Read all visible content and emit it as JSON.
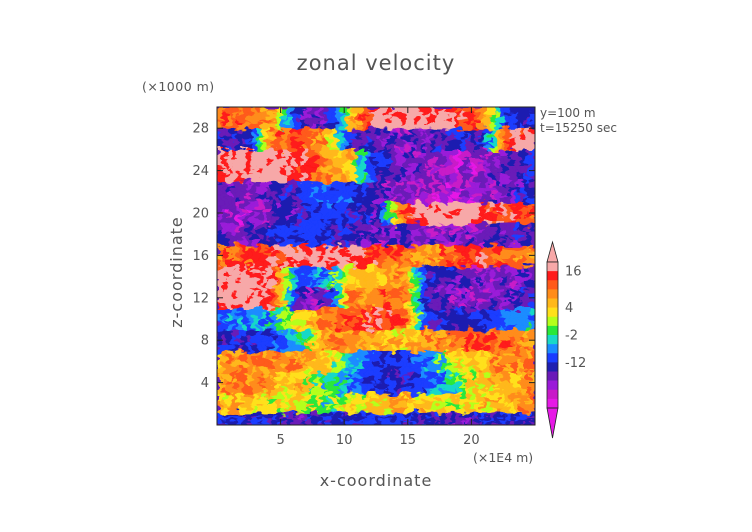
{
  "chart_data": {
    "type": "heatmap",
    "title": "zonal velocity",
    "xlabel": "x-coordinate",
    "ylabel": "z-coordinate",
    "x_unit": "(×1E4 m)",
    "y_unit": "(×1000 m)",
    "annotations": [
      "y=100 m",
      "t=15250 sec"
    ],
    "xlim": [
      0,
      25
    ],
    "ylim": [
      0,
      30
    ],
    "x_ticks": [
      5,
      10,
      15,
      20
    ],
    "y_ticks": [
      4,
      8,
      12,
      16,
      20,
      24,
      28
    ],
    "colorbar": {
      "tick_labels": [
        "16",
        "4",
        "-2",
        "-12"
      ],
      "tick_values": [
        16,
        4,
        -2,
        -12
      ],
      "colors": [
        "#f7a8a8",
        "#ff1a1a",
        "#ff5a1a",
        "#ff8c1a",
        "#ffb81a",
        "#ffe01a",
        "#b5ff1a",
        "#29e83a",
        "#19d8c8",
        "#1a8cff",
        "#1a3cff",
        "#1f1fb0",
        "#6a1ab8",
        "#9a1ad8",
        "#c81ac8",
        "#e619e6"
      ],
      "color_boundaries": [
        18,
        16,
        13,
        10,
        7,
        4,
        2,
        0,
        -2,
        -4,
        -7,
        -12,
        -15,
        -18,
        -20,
        -22,
        -24
      ]
    },
    "grid": false,
    "bands": [
      {
        "z": [
          0.0,
          1.2
        ],
        "desc": "mostly -14 to -18 (purple) near ground",
        "x_profile": [
          -10,
          -14,
          -12,
          -16,
          -14,
          -12,
          -10,
          -12,
          -14,
          -16,
          -14,
          -12,
          -14
        ]
      },
      {
        "z": [
          1.2,
          3.0
        ],
        "x_profile": [
          4,
          6,
          2,
          4,
          -2,
          2,
          4,
          6,
          4,
          2,
          4,
          6,
          8
        ]
      },
      {
        "z": [
          3.0,
          5.0
        ],
        "x_profile": [
          8,
          10,
          6,
          4,
          -2,
          -6,
          -12,
          -14,
          -8,
          -2,
          4,
          6,
          8
        ]
      },
      {
        "z": [
          5.0,
          7.0
        ],
        "x_profile": [
          6,
          8,
          10,
          8,
          4,
          -4,
          -10,
          -12,
          -6,
          2,
          6,
          8,
          10
        ]
      },
      {
        "z": [
          7.0,
          9.0
        ],
        "x_profile": [
          -12,
          -14,
          -10,
          -4,
          8,
          10,
          6,
          4,
          8,
          10,
          12,
          10,
          8
        ]
      },
      {
        "z": [
          9.0,
          11.0
        ],
        "x_profile": [
          -8,
          -6,
          -4,
          2,
          10,
          12,
          14,
          12,
          -12,
          -14,
          -12,
          -8,
          -4
        ]
      },
      {
        "z": [
          11.0,
          13.0
        ],
        "x_profile": [
          18,
          18,
          16,
          -16,
          -18,
          8,
          10,
          12,
          -14,
          -18,
          -18,
          -16,
          -14
        ]
      },
      {
        "z": [
          13.0,
          15.0
        ],
        "x_profile": [
          18,
          18,
          16,
          -8,
          -6,
          4,
          6,
          8,
          -12,
          -16,
          -18,
          -18,
          -16
        ]
      },
      {
        "z": [
          15.0,
          17.0
        ],
        "x_profile": [
          10,
          12,
          14,
          16,
          18,
          18,
          12,
          10,
          8,
          12,
          14,
          10,
          8
        ]
      },
      {
        "z": [
          17.0,
          19.0
        ],
        "x_profile": [
          -16,
          -18,
          -14,
          -10,
          -12,
          -14,
          -18,
          -16,
          -18,
          -18,
          -18,
          -16,
          -14
        ]
      },
      {
        "z": [
          19.0,
          21.0
        ],
        "x_profile": [
          -18,
          -20,
          -18,
          -14,
          -10,
          -12,
          -16,
          12,
          18,
          18,
          16,
          14,
          12
        ]
      },
      {
        "z": [
          21.0,
          23.0
        ],
        "x_profile": [
          -14,
          -18,
          -16,
          -12,
          -8,
          -10,
          -16,
          -18,
          -20,
          -20,
          -18,
          -16,
          -14
        ]
      },
      {
        "z": [
          23.0,
          26.0
        ],
        "x_profile": [
          18,
          18,
          18,
          16,
          8,
          4,
          -12,
          -16,
          -18,
          -20,
          -18,
          -16,
          -14
        ]
      },
      {
        "z": [
          26.0,
          28.0
        ],
        "x_profile": [
          -14,
          -16,
          10,
          12,
          8,
          -12,
          -16,
          -18,
          -16,
          -12,
          -14,
          12,
          18
        ]
      },
      {
        "z": [
          28.0,
          30.0
        ],
        "x_profile": [
          12,
          10,
          8,
          -14,
          -18,
          4,
          18,
          18,
          18,
          16,
          12,
          -10,
          -14
        ]
      }
    ]
  }
}
